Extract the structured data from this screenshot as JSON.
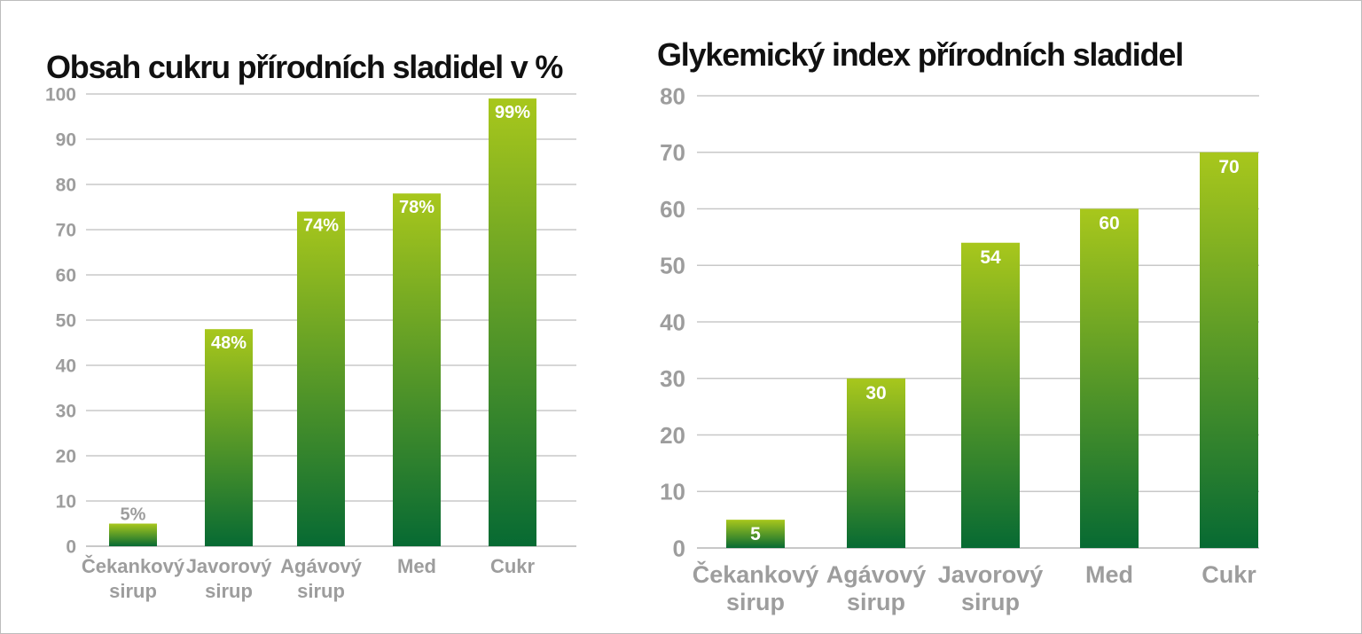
{
  "colors": {
    "bar_top": "#a8c71c",
    "bar_bottom": "#076a33",
    "grid": "#c8c8c8",
    "axis_text": "#9d9d9d",
    "inside_label": "#ffffff"
  },
  "chart_data": [
    {
      "type": "bar",
      "title": "Obsah cukru přírodních sladidel v %",
      "categories": [
        [
          "Čekankový",
          "sirup"
        ],
        [
          "Javorový",
          "sirup"
        ],
        [
          "Agávový",
          "sirup"
        ],
        [
          "Med"
        ],
        [
          "Cukr"
        ]
      ],
      "values": [
        5,
        48,
        74,
        78,
        99
      ],
      "data_labels": [
        "5%",
        "48%",
        "74%",
        "78%",
        "99%"
      ],
      "ylim": [
        0,
        100
      ],
      "yticks": [
        0,
        10,
        20,
        30,
        40,
        50,
        60,
        70,
        80,
        90,
        100
      ],
      "grid": true
    },
    {
      "type": "bar",
      "title": "Glykemický index přírodních sladidel",
      "categories": [
        [
          "Čekankový",
          "sirup"
        ],
        [
          "Agávový",
          "sirup"
        ],
        [
          "Javorový",
          "sirup"
        ],
        [
          "Med"
        ],
        [
          "Cukr"
        ]
      ],
      "values": [
        5,
        30,
        54,
        60,
        70
      ],
      "data_labels": [
        "5",
        "30",
        "54",
        "60",
        "70"
      ],
      "ylim": [
        0,
        80
      ],
      "yticks": [
        0,
        10,
        20,
        30,
        40,
        50,
        60,
        70,
        80
      ],
      "grid": true
    }
  ]
}
